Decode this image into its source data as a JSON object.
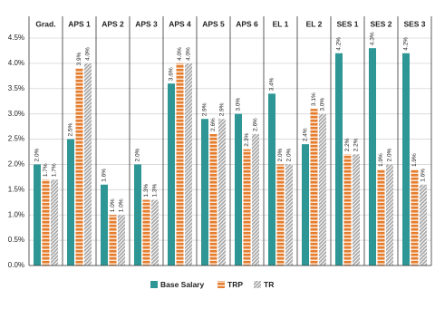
{
  "chart_data": {
    "type": "bar",
    "categories": [
      "Grad.",
      "APS 1",
      "APS 2",
      "APS 3",
      "APS 4",
      "APS 5",
      "APS 6",
      "EL 1",
      "EL 2",
      "SES 1",
      "SES 2",
      "SES 3"
    ],
    "series": [
      {
        "name": "Base Salary",
        "color": "#2e9795",
        "values": [
          2.0,
          2.5,
          1.6,
          2.0,
          3.6,
          2.9,
          3.0,
          3.4,
          2.4,
          4.2,
          4.3,
          4.2
        ],
        "value_labels": [
          "2.0%",
          "2.5%",
          "1.6%",
          "2.0%",
          "3.6%",
          "2.9%",
          "3.0%",
          "3.4%",
          "2.4%",
          "4.2%",
          "4.3%",
          "4.2%"
        ]
      },
      {
        "name": "TRP",
        "color": "#e57d2d",
        "values": [
          1.7,
          3.9,
          1.0,
          1.3,
          4.0,
          2.6,
          2.3,
          2.0,
          3.1,
          2.2,
          1.9,
          1.9
        ],
        "value_labels": [
          "1.7%",
          "3.9%",
          "1.0%",
          "1.3%",
          "4.0%",
          "2.6%",
          "2.3%",
          "2.0%",
          "3.1%",
          "2.2%",
          "1.9%",
          "1.9%"
        ]
      },
      {
        "name": "TR",
        "color": "#a9a9a9",
        "values": [
          1.7,
          4.0,
          1.0,
          1.3,
          4.0,
          2.9,
          2.6,
          2.0,
          3.0,
          2.2,
          2.0,
          1.6
        ],
        "value_labels": [
          "1.7%",
          "4.0%",
          "1.0%",
          "1.3%",
          "4.0%",
          "2.9%",
          "2.6%",
          "2.0%",
          "3.0%",
          "2.2%",
          "2.0%",
          "1.6%"
        ]
      }
    ],
    "ylim": [
      0,
      4.5
    ],
    "yticks": [
      {
        "value": 0,
        "label": "0.0%"
      },
      {
        "value": 0.5,
        "label": "0.5%"
      },
      {
        "value": 1,
        "label": "1.0%"
      },
      {
        "value": 1.5,
        "label": "1.5%"
      },
      {
        "value": 2,
        "label": "2.0%"
      },
      {
        "value": 2.5,
        "label": "2.5%"
      },
      {
        "value": 3,
        "label": "3.0%"
      },
      {
        "value": 3.5,
        "label": "3.5%"
      },
      {
        "value": 4,
        "label": "4.0%"
      },
      {
        "value": 4.5,
        "label": "4.5%"
      }
    ],
    "grid": true,
    "legend": "bottom"
  }
}
